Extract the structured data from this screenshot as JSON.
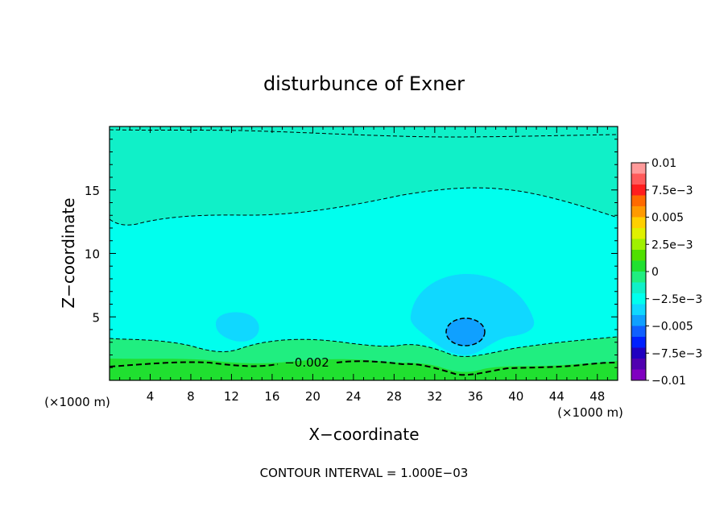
{
  "chart_data": {
    "type": "heatmap",
    "subtype": "filled-contour",
    "title": "disturbunce of Exner",
    "xlabel": "X−coordinate",
    "ylabel": "Z−coordinate",
    "x_unit_left": "(×1000 m)",
    "x_unit_right": "(×1000 m)",
    "xlim": [
      0,
      50
    ],
    "ylim": [
      0,
      20
    ],
    "xticks": [
      4,
      8,
      12,
      16,
      20,
      24,
      28,
      32,
      36,
      40,
      44,
      48
    ],
    "xticklabels": [
      "4",
      "8",
      "12",
      "16",
      "20",
      "24",
      "28",
      "32",
      "36",
      "40",
      "44",
      "48"
    ],
    "yticks": [
      5,
      10,
      15
    ],
    "yticklabels": [
      "5",
      "10",
      "15"
    ],
    "contour_label": "−0.002",
    "footer": "CONTOUR INTERVAL = 1.000E−03",
    "colorbar": {
      "min": -0.01,
      "max": 0.01,
      "ticks": [
        0.01,
        0.0075,
        0.005,
        0.0025,
        0,
        -0.0025,
        -0.005,
        -0.0075,
        -0.01
      ],
      "ticklabels": [
        "0.01",
        "7.5e−3",
        "0.005",
        "2.5e−3",
        "0",
        "−2.5e−3",
        "−0.005",
        "−7.5e−3",
        "−0.01"
      ],
      "colors": [
        "#ff9a9a",
        "#ff5a5a",
        "#ff1e1e",
        "#ff6a00",
        "#ff9a00",
        "#ffd000",
        "#e0f000",
        "#a0f000",
        "#50e000",
        "#20e030",
        "#20ee80",
        "#10f0c8",
        "#00ffee",
        "#10d8ff",
        "#10a0ff",
        "#1060ff",
        "#0020ff",
        "#2000c0",
        "#5000b0",
        "#8000c0"
      ]
    },
    "regions": [
      {
        "level": -0.0025,
        "color": "#00ffee",
        "desc": "background mid field"
      },
      {
        "level": -0.002,
        "color": "#10f0c8",
        "desc": "upper layer"
      },
      {
        "level": -0.002,
        "color": "#10f0c8",
        "desc": "top band"
      },
      {
        "level": -0.0015,
        "color": "#20ee80",
        "desc": "lower layer"
      },
      {
        "level": -0.001,
        "color": "#20e030",
        "desc": "near-surface layer"
      },
      {
        "level": -0.003,
        "color": "#10d8ff",
        "desc": "blob near x=13"
      },
      {
        "level": -0.003,
        "color": "#10d8ff",
        "desc": "blob near x=35"
      },
      {
        "level": -0.004,
        "color": "#10a0ff",
        "desc": "core near x=35 z=4"
      }
    ]
  },
  "colors": {
    "frame": "#000000",
    "background": "#ffffff"
  }
}
